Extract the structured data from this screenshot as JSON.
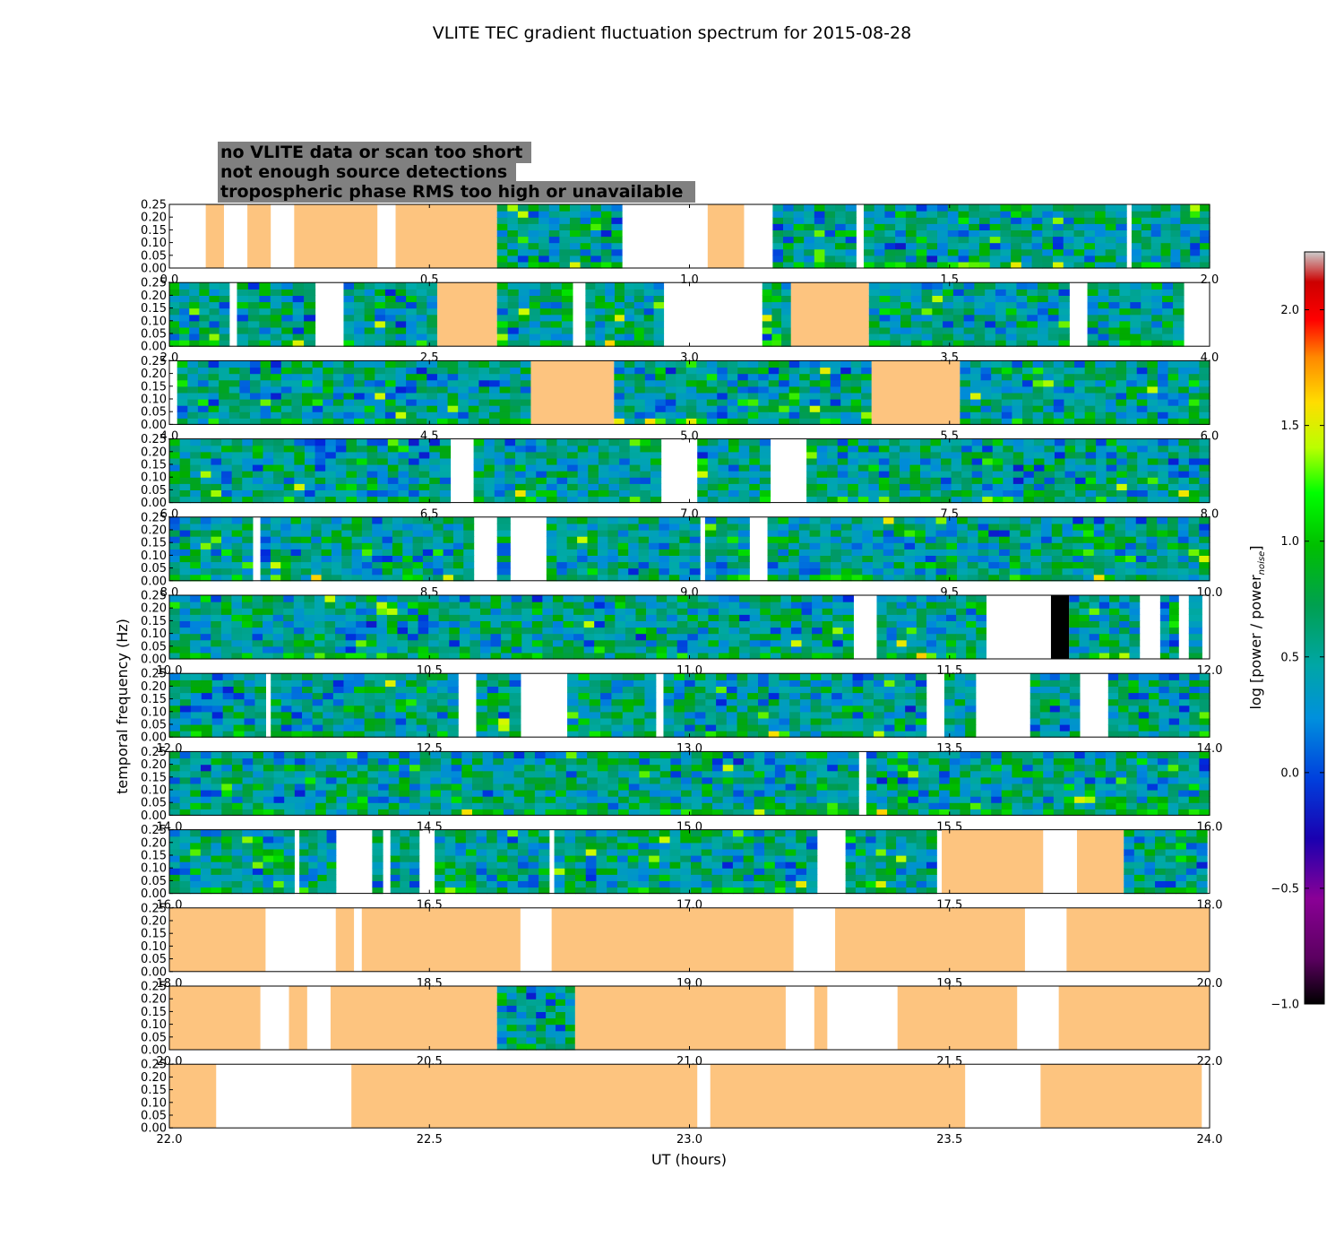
{
  "chart_data": {
    "type": "heatmap",
    "title": "VLITE TEC gradient fluctuation spectrum for 2015-08-28",
    "xlabel": "UT (hours)",
    "ylabel": "temporal frequency (Hz)",
    "ylim": [
      0,
      0.25
    ],
    "y_ticks": [
      "0.00",
      "0.05",
      "0.10",
      "0.15",
      "0.20",
      "0.25"
    ],
    "grid": false,
    "colorbar": {
      "label": "log [power / power",
      "label_subscript": "noise",
      "label_close": "]",
      "range": [
        -1.0,
        2.25
      ],
      "ticks": [
        "−1.0",
        "−0.5",
        "0.0",
        "0.5",
        "1.0",
        "1.5",
        "2.0"
      ],
      "colormap": "nipy_spectral"
    },
    "legend": {
      "placement": "top-left",
      "entries": [
        {
          "label": "no VLITE data or scan too short",
          "text_color": "#ffffff",
          "category": "none"
        },
        {
          "label": "not enough source detections",
          "text_color": "#000000",
          "category": "black"
        },
        {
          "label": "tropospheric phase RMS too high or unavailable",
          "text_color": "#fdc47f",
          "category": "orange"
        }
      ],
      "box_color": "#808080"
    },
    "colors": {
      "tropospheric": "#fdc47f",
      "insufficient": "#000000",
      "no_data": "#ffffff"
    },
    "panels": [
      {
        "range": [
          0.0,
          2.0
        ],
        "x_ticks": [
          "0.0",
          "0.5",
          "1.0",
          "1.5",
          "2.0"
        ],
        "segments": [
          {
            "start": 0.07,
            "end": 0.105,
            "kind": "orange"
          },
          {
            "start": 0.15,
            "end": 0.195,
            "kind": "orange"
          },
          {
            "start": 0.24,
            "end": 0.4,
            "kind": "orange"
          },
          {
            "start": 0.435,
            "end": 0.63,
            "kind": "orange"
          },
          {
            "start": 0.63,
            "end": 0.87,
            "kind": "data"
          },
          {
            "start": 1.035,
            "end": 1.105,
            "kind": "orange"
          },
          {
            "start": 1.16,
            "end": 1.32,
            "kind": "data"
          },
          {
            "start": 1.335,
            "end": 1.84,
            "kind": "data"
          },
          {
            "start": 1.85,
            "end": 2.0,
            "kind": "data"
          }
        ]
      },
      {
        "range": [
          2.0,
          4.0
        ],
        "x_ticks": [
          "2.0",
          "2.5",
          "3.0",
          "3.5",
          "4.0"
        ],
        "segments": [
          {
            "start": 2.0,
            "end": 2.115,
            "kind": "data"
          },
          {
            "start": 2.13,
            "end": 2.28,
            "kind": "data"
          },
          {
            "start": 2.335,
            "end": 2.515,
            "kind": "data"
          },
          {
            "start": 2.515,
            "end": 2.63,
            "kind": "orange"
          },
          {
            "start": 2.63,
            "end": 2.775,
            "kind": "data"
          },
          {
            "start": 2.8,
            "end": 2.95,
            "kind": "data"
          },
          {
            "start": 3.14,
            "end": 3.195,
            "kind": "data"
          },
          {
            "start": 3.195,
            "end": 3.345,
            "kind": "orange"
          },
          {
            "start": 3.345,
            "end": 3.73,
            "kind": "data"
          },
          {
            "start": 3.765,
            "end": 3.95,
            "kind": "data"
          }
        ]
      },
      {
        "range": [
          4.0,
          6.0
        ],
        "x_ticks": [
          "4.0",
          "4.5",
          "5.0",
          "5.5",
          "6.0"
        ],
        "segments": [
          {
            "start": 4.015,
            "end": 4.695,
            "kind": "data"
          },
          {
            "start": 4.695,
            "end": 4.855,
            "kind": "orange"
          },
          {
            "start": 4.855,
            "end": 5.35,
            "kind": "data"
          },
          {
            "start": 5.35,
            "end": 5.52,
            "kind": "orange"
          },
          {
            "start": 5.52,
            "end": 6.0,
            "kind": "data"
          }
        ]
      },
      {
        "range": [
          6.0,
          8.0
        ],
        "x_ticks": [
          "6.0",
          "6.5",
          "7.0",
          "7.5",
          "8.0"
        ],
        "segments": [
          {
            "start": 6.0,
            "end": 6.54,
            "kind": "data"
          },
          {
            "start": 6.585,
            "end": 6.945,
            "kind": "data"
          },
          {
            "start": 7.015,
            "end": 7.155,
            "kind": "data"
          },
          {
            "start": 7.225,
            "end": 8.0,
            "kind": "data"
          }
        ]
      },
      {
        "range": [
          8.0,
          10.0
        ],
        "x_ticks": [
          "8.0",
          "8.5",
          "9.0",
          "9.5",
          "10.0"
        ],
        "segments": [
          {
            "start": 8.0,
            "end": 8.16,
            "kind": "data"
          },
          {
            "start": 8.175,
            "end": 8.585,
            "kind": "data"
          },
          {
            "start": 8.63,
            "end": 8.655,
            "kind": "data"
          },
          {
            "start": 8.725,
            "end": 9.02,
            "kind": "data"
          },
          {
            "start": 9.03,
            "end": 9.115,
            "kind": "data"
          },
          {
            "start": 9.15,
            "end": 10.0,
            "kind": "data"
          }
        ]
      },
      {
        "range": [
          10.0,
          12.0
        ],
        "x_ticks": [
          "10.0",
          "10.5",
          "11.0",
          "11.5",
          "12.0"
        ],
        "segments": [
          {
            "start": 10.0,
            "end": 11.315,
            "kind": "data"
          },
          {
            "start": 11.36,
            "end": 11.57,
            "kind": "data"
          },
          {
            "start": 11.695,
            "end": 11.73,
            "kind": "black"
          },
          {
            "start": 11.73,
            "end": 11.865,
            "kind": "data"
          },
          {
            "start": 11.905,
            "end": 11.94,
            "kind": "data"
          },
          {
            "start": 11.96,
            "end": 11.985,
            "kind": "data"
          }
        ]
      },
      {
        "range": [
          12.0,
          14.0
        ],
        "x_ticks": [
          "12.0",
          "12.5",
          "13.0",
          "13.5",
          "14.0"
        ],
        "segments": [
          {
            "start": 12.0,
            "end": 12.185,
            "kind": "data"
          },
          {
            "start": 12.195,
            "end": 12.555,
            "kind": "data"
          },
          {
            "start": 12.59,
            "end": 12.675,
            "kind": "data"
          },
          {
            "start": 12.765,
            "end": 12.935,
            "kind": "data"
          },
          {
            "start": 12.95,
            "end": 13.455,
            "kind": "data"
          },
          {
            "start": 13.49,
            "end": 13.55,
            "kind": "data"
          },
          {
            "start": 13.655,
            "end": 13.75,
            "kind": "data"
          },
          {
            "start": 13.805,
            "end": 14.0,
            "kind": "data"
          }
        ]
      },
      {
        "range": [
          14.0,
          16.0
        ],
        "x_ticks": [
          "14.0",
          "14.5",
          "15.0",
          "15.5",
          "16.0"
        ],
        "segments": [
          {
            "start": 14.0,
            "end": 15.325,
            "kind": "data"
          },
          {
            "start": 15.34,
            "end": 16.0,
            "kind": "data"
          }
        ]
      },
      {
        "range": [
          16.0,
          18.0
        ],
        "x_ticks": [
          "16.0",
          "16.5",
          "17.0",
          "17.5",
          "18.0"
        ],
        "segments": [
          {
            "start": 16.0,
            "end": 16.24,
            "kind": "data"
          },
          {
            "start": 16.25,
            "end": 16.32,
            "kind": "data"
          },
          {
            "start": 16.39,
            "end": 16.41,
            "kind": "data"
          },
          {
            "start": 16.425,
            "end": 16.48,
            "kind": "data"
          },
          {
            "start": 16.51,
            "end": 16.73,
            "kind": "data"
          },
          {
            "start": 16.74,
            "end": 17.245,
            "kind": "data"
          },
          {
            "start": 17.3,
            "end": 17.475,
            "kind": "data"
          },
          {
            "start": 17.485,
            "end": 17.68,
            "kind": "orange"
          },
          {
            "start": 17.745,
            "end": 17.835,
            "kind": "orange"
          },
          {
            "start": 17.835,
            "end": 17.995,
            "kind": "data"
          }
        ]
      },
      {
        "range": [
          18.0,
          20.0
        ],
        "x_ticks": [
          "18.0",
          "18.5",
          "19.0",
          "19.5",
          "20.0"
        ],
        "segments": [
          {
            "start": 18.0,
            "end": 18.185,
            "kind": "orange"
          },
          {
            "start": 18.32,
            "end": 18.355,
            "kind": "orange"
          },
          {
            "start": 18.37,
            "end": 18.675,
            "kind": "orange"
          },
          {
            "start": 18.735,
            "end": 19.2,
            "kind": "orange"
          },
          {
            "start": 19.28,
            "end": 19.645,
            "kind": "orange"
          },
          {
            "start": 19.725,
            "end": 20.0,
            "kind": "orange"
          }
        ]
      },
      {
        "range": [
          20.0,
          22.0
        ],
        "x_ticks": [
          "20.0",
          "20.5",
          "21.0",
          "21.5",
          "22.0"
        ],
        "segments": [
          {
            "start": 20.0,
            "end": 20.175,
            "kind": "orange"
          },
          {
            "start": 20.23,
            "end": 20.265,
            "kind": "orange"
          },
          {
            "start": 20.31,
            "end": 20.63,
            "kind": "orange"
          },
          {
            "start": 20.63,
            "end": 20.78,
            "kind": "data"
          },
          {
            "start": 20.78,
            "end": 21.185,
            "kind": "orange"
          },
          {
            "start": 21.24,
            "end": 21.265,
            "kind": "orange"
          },
          {
            "start": 21.4,
            "end": 21.63,
            "kind": "orange"
          },
          {
            "start": 21.71,
            "end": 22.0,
            "kind": "orange"
          }
        ]
      },
      {
        "range": [
          22.0,
          24.0
        ],
        "x_ticks": [
          "22.0",
          "22.5",
          "23.0",
          "23.5",
          "24.0"
        ],
        "segments": [
          {
            "start": 22.0,
            "end": 22.09,
            "kind": "orange"
          },
          {
            "start": 22.35,
            "end": 23.015,
            "kind": "orange"
          },
          {
            "start": 23.04,
            "end": 23.53,
            "kind": "orange"
          },
          {
            "start": 23.675,
            "end": 23.985,
            "kind": "orange"
          }
        ]
      }
    ]
  }
}
